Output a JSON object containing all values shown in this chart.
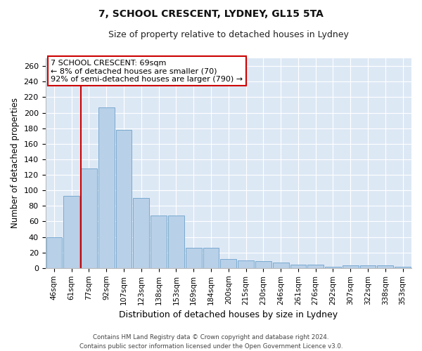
{
  "title": "7, SCHOOL CRESCENT, LYDNEY, GL15 5TA",
  "subtitle": "Size of property relative to detached houses in Lydney",
  "xlabel": "Distribution of detached houses by size in Lydney",
  "ylabel": "Number of detached properties",
  "categories": [
    "46sqm",
    "61sqm",
    "77sqm",
    "92sqm",
    "107sqm",
    "123sqm",
    "138sqm",
    "153sqm",
    "169sqm",
    "184sqm",
    "200sqm",
    "215sqm",
    "230sqm",
    "246sqm",
    "261sqm",
    "276sqm",
    "292sqm",
    "307sqm",
    "322sqm",
    "338sqm",
    "353sqm"
  ],
  "values": [
    40,
    93,
    128,
    207,
    178,
    90,
    68,
    68,
    26,
    26,
    12,
    10,
    9,
    7,
    4,
    4,
    2,
    3,
    3,
    3,
    2
  ],
  "bar_color": "#b8d0e8",
  "bar_edge_color": "#7aaad0",
  "annotation_box_text": "7 SCHOOL CRESCENT: 69sqm\n← 8% of detached houses are smaller (70)\n92% of semi-detached houses are larger (790) →",
  "red_line_color": "#cc0000",
  "background_color": "#dde8f5",
  "grid_color": "#ffffff",
  "footer": "Contains HM Land Registry data © Crown copyright and database right 2024.\nContains public sector information licensed under the Open Government Licence v3.0.",
  "ylim": [
    0,
    270
  ],
  "yticks": [
    0,
    20,
    40,
    60,
    80,
    100,
    120,
    140,
    160,
    180,
    200,
    220,
    240,
    260
  ]
}
